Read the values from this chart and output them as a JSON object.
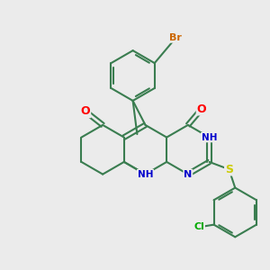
{
  "background_color": "#ebebeb",
  "bond_color": "#3a7d50",
  "bond_width": 1.5,
  "atom_colors": {
    "O": "#ff0000",
    "N": "#0000cc",
    "S": "#cccc00",
    "Br": "#cc6600",
    "Cl": "#00aa00",
    "C": "#3a7d50",
    "H": "#888888"
  },
  "figsize": [
    3.0,
    3.0
  ],
  "dpi": 100,
  "xlim": [
    -2.6,
    2.8
  ],
  "ylim": [
    -3.0,
    2.6
  ]
}
